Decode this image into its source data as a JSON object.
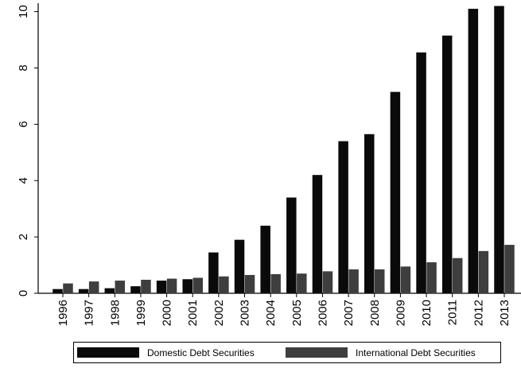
{
  "chart_data": {
    "type": "bar",
    "categories": [
      "1996",
      "1997",
      "1998",
      "1999",
      "2000",
      "2001",
      "2002",
      "2003",
      "2004",
      "2005",
      "2006",
      "2007",
      "2008",
      "2009",
      "2010",
      "2011",
      "2012",
      "2013"
    ],
    "series": [
      {
        "name": "Domestic Debt Securities",
        "color": "#0a0a0a",
        "values": [
          0.15,
          0.15,
          0.18,
          0.25,
          0.45,
          0.5,
          1.45,
          1.9,
          2.4,
          3.4,
          4.2,
          5.4,
          5.65,
          7.15,
          8.55,
          9.15,
          10.1,
          10.2
        ]
      },
      {
        "name": "International Debt Securities",
        "color": "#3e3e3e",
        "values": [
          0.35,
          0.42,
          0.45,
          0.48,
          0.52,
          0.55,
          0.6,
          0.65,
          0.68,
          0.7,
          0.78,
          0.85,
          0.85,
          0.95,
          1.1,
          1.25,
          1.5,
          1.72
        ]
      }
    ],
    "yticks": [
      0,
      2,
      4,
      6,
      8,
      10
    ],
    "ylim": [
      0,
      10.3
    ],
    "legend_position": "bottom",
    "grid": false
  }
}
